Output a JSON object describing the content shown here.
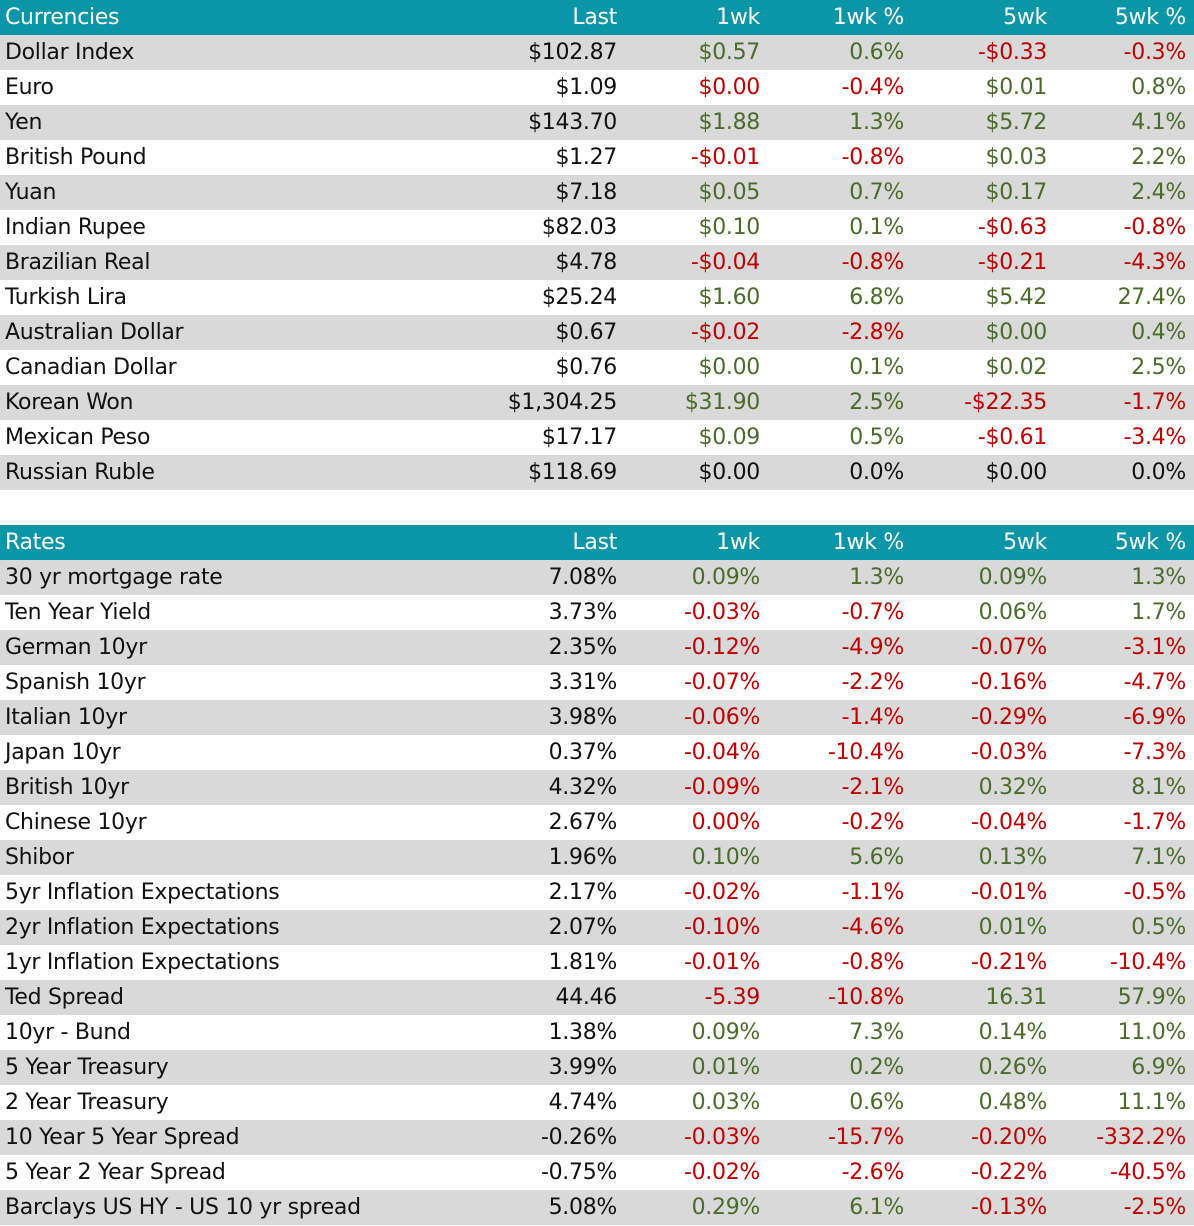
{
  "colors": {
    "header_bg": "#0a96a6",
    "row_shade": "#d9d9d9",
    "positive": "#4a6b2a",
    "negative": "#c00000"
  },
  "currencies": {
    "header": [
      "Currencies",
      "Last",
      "1wk",
      "1wk %",
      "5wk",
      "5wk %"
    ],
    "rows": [
      [
        "Dollar Index",
        "$102.87",
        "$0.57",
        "0.6%",
        "-$0.33",
        "-0.3%"
      ],
      [
        "Euro",
        "$1.09",
        "$0.00",
        "-0.4%",
        "$0.01",
        "0.8%"
      ],
      [
        "Yen",
        "$143.70",
        "$1.88",
        "1.3%",
        "$5.72",
        "4.1%"
      ],
      [
        "British Pound",
        "$1.27",
        "-$0.01",
        "-0.8%",
        "$0.03",
        "2.2%"
      ],
      [
        "Yuan",
        "$7.18",
        "$0.05",
        "0.7%",
        "$0.17",
        "2.4%"
      ],
      [
        "Indian Rupee",
        "$82.03",
        "$0.10",
        "0.1%",
        "-$0.63",
        "-0.8%"
      ],
      [
        "Brazilian Real",
        "$4.78",
        "-$0.04",
        "-0.8%",
        "-$0.21",
        "-4.3%"
      ],
      [
        "Turkish Lira",
        "$25.24",
        "$1.60",
        "6.8%",
        "$5.42",
        "27.4%"
      ],
      [
        "Australian Dollar",
        "$0.67",
        "-$0.02",
        "-2.8%",
        "$0.00",
        "0.4%"
      ],
      [
        "Canadian Dollar",
        "$0.76",
        "$0.00",
        "0.1%",
        "$0.02",
        "2.5%"
      ],
      [
        "Korean Won",
        "$1,304.25",
        "$31.90",
        "2.5%",
        "-$22.35",
        "-1.7%"
      ],
      [
        "Mexican Peso",
        "$17.17",
        "$0.09",
        "0.5%",
        "-$0.61",
        "-3.4%"
      ],
      [
        "Russian Ruble",
        "$118.69",
        "$0.00",
        "0.0%",
        "$0.00",
        "0.0%"
      ]
    ],
    "colors": [
      [
        "pos",
        "pos",
        "neg",
        "neg"
      ],
      [
        "neg",
        "neg",
        "pos",
        "pos"
      ],
      [
        "pos",
        "pos",
        "pos",
        "pos"
      ],
      [
        "neg",
        "neg",
        "pos",
        "pos"
      ],
      [
        "pos",
        "pos",
        "pos",
        "pos"
      ],
      [
        "pos",
        "pos",
        "neg",
        "neg"
      ],
      [
        "neg",
        "neg",
        "neg",
        "neg"
      ],
      [
        "pos",
        "pos",
        "pos",
        "pos"
      ],
      [
        "neg",
        "neg",
        "pos",
        "pos"
      ],
      [
        "pos",
        "pos",
        "pos",
        "pos"
      ],
      [
        "pos",
        "pos",
        "neg",
        "neg"
      ],
      [
        "pos",
        "pos",
        "neg",
        "neg"
      ],
      [
        "zero",
        "zero",
        "zero",
        "zero"
      ]
    ]
  },
  "rates": {
    "header": [
      "Rates",
      "Last",
      "1wk",
      "1wk %",
      "5wk",
      "5wk %"
    ],
    "rows": [
      [
        "30 yr mortgage rate",
        "7.08%",
        "0.09%",
        "1.3%",
        "0.09%",
        "1.3%"
      ],
      [
        "Ten Year Yield",
        "3.73%",
        "-0.03%",
        "-0.7%",
        "0.06%",
        "1.7%"
      ],
      [
        "German 10yr",
        "2.35%",
        "-0.12%",
        "-4.9%",
        "-0.07%",
        "-3.1%"
      ],
      [
        "Spanish 10yr",
        "3.31%",
        "-0.07%",
        "-2.2%",
        "-0.16%",
        "-4.7%"
      ],
      [
        "Italian 10yr",
        "3.98%",
        "-0.06%",
        "-1.4%",
        "-0.29%",
        "-6.9%"
      ],
      [
        "Japan 10yr",
        "0.37%",
        "-0.04%",
        "-10.4%",
        "-0.03%",
        "-7.3%"
      ],
      [
        "British 10yr",
        "4.32%",
        "-0.09%",
        "-2.1%",
        "0.32%",
        "8.1%"
      ],
      [
        "Chinese 10yr",
        "2.67%",
        "0.00%",
        "-0.2%",
        "-0.04%",
        "-1.7%"
      ],
      [
        "Shibor",
        "1.96%",
        "0.10%",
        "5.6%",
        "0.13%",
        "7.1%"
      ],
      [
        "5yr Inflation Expectations",
        "2.17%",
        "-0.02%",
        "-1.1%",
        "-0.01%",
        "-0.5%"
      ],
      [
        "2yr Inflation Expectations",
        "2.07%",
        "-0.10%",
        "-4.6%",
        "0.01%",
        "0.5%"
      ],
      [
        "1yr Inflation Expectations",
        "1.81%",
        "-0.01%",
        "-0.8%",
        "-0.21%",
        "-10.4%"
      ],
      [
        "Ted Spread",
        "44.46",
        "-5.39",
        "-10.8%",
        "16.31",
        "57.9%"
      ],
      [
        "10yr - Bund",
        "1.38%",
        "0.09%",
        "7.3%",
        "0.14%",
        "11.0%"
      ],
      [
        "5 Year Treasury",
        "3.99%",
        "0.01%",
        "0.2%",
        "0.26%",
        "6.9%"
      ],
      [
        "2 Year Treasury",
        "4.74%",
        "0.03%",
        "0.6%",
        "0.48%",
        "11.1%"
      ],
      [
        "10 Year 5 Year Spread",
        "-0.26%",
        "-0.03%",
        "-15.7%",
        "-0.20%",
        "-332.2%"
      ],
      [
        "5 Year 2 Year Spread",
        "-0.75%",
        "-0.02%",
        "-2.6%",
        "-0.22%",
        "-40.5%"
      ],
      [
        "Barclays US HY - US 10 yr spread",
        "5.08%",
        "0.29%",
        "6.1%",
        "-0.13%",
        "-2.5%"
      ]
    ],
    "colors": [
      [
        "pos",
        "pos",
        "pos",
        "pos"
      ],
      [
        "neg",
        "neg",
        "pos",
        "pos"
      ],
      [
        "neg",
        "neg",
        "neg",
        "neg"
      ],
      [
        "neg",
        "neg",
        "neg",
        "neg"
      ],
      [
        "neg",
        "neg",
        "neg",
        "neg"
      ],
      [
        "neg",
        "neg",
        "neg",
        "neg"
      ],
      [
        "neg",
        "neg",
        "pos",
        "pos"
      ],
      [
        "neg",
        "neg",
        "neg",
        "neg"
      ],
      [
        "pos",
        "pos",
        "pos",
        "pos"
      ],
      [
        "neg",
        "neg",
        "neg",
        "neg"
      ],
      [
        "neg",
        "neg",
        "pos",
        "pos"
      ],
      [
        "neg",
        "neg",
        "neg",
        "neg"
      ],
      [
        "neg",
        "neg",
        "pos",
        "pos"
      ],
      [
        "pos",
        "pos",
        "pos",
        "pos"
      ],
      [
        "pos",
        "pos",
        "pos",
        "pos"
      ],
      [
        "pos",
        "pos",
        "pos",
        "pos"
      ],
      [
        "neg",
        "neg",
        "neg",
        "neg"
      ],
      [
        "neg",
        "neg",
        "neg",
        "neg"
      ],
      [
        "pos",
        "pos",
        "neg",
        "neg"
      ]
    ]
  }
}
